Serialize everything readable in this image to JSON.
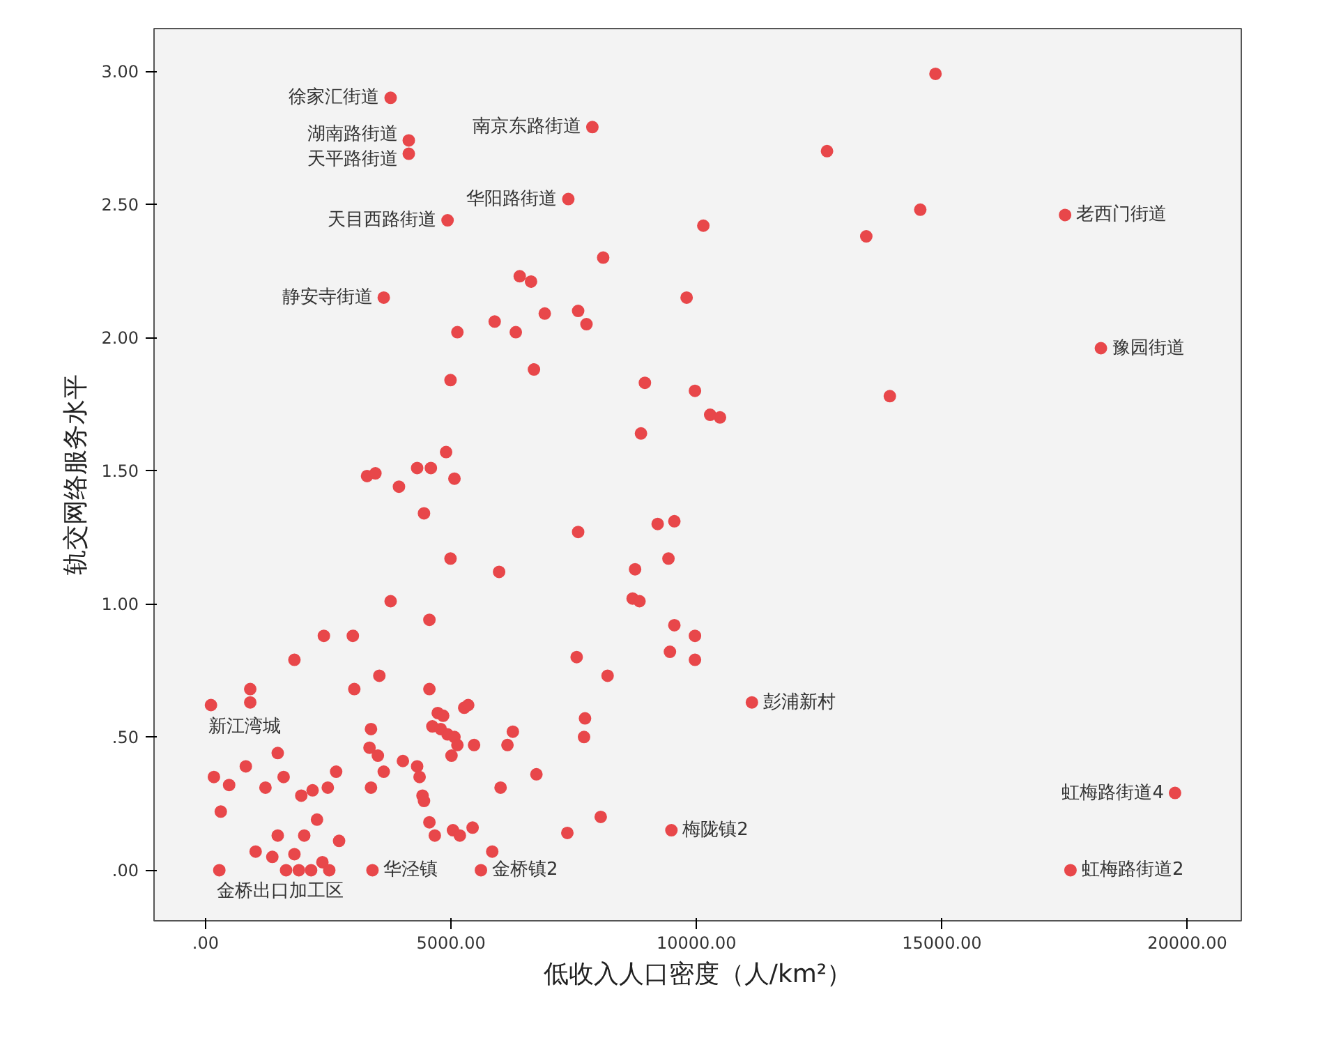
{
  "chart_data": {
    "type": "scatter",
    "xlabel": "低收入人口密度（人/km²）",
    "ylabel": "轨交网络服务水平",
    "xlim": [
      -1050,
      21100
    ],
    "ylim": [
      -0.19,
      3.16
    ],
    "xticks": [
      {
        "value": 0,
        "label": ".00"
      },
      {
        "value": 5000,
        "label": "5000.00"
      },
      {
        "value": 10000,
        "label": "10000.00"
      },
      {
        "value": 15000,
        "label": "15000.00"
      },
      {
        "value": 20000,
        "label": "20000.00"
      }
    ],
    "yticks": [
      {
        "value": 0,
        "label": ".00"
      },
      {
        "value": 0.5,
        "label": ".50"
      },
      {
        "value": 1,
        "label": "1.00"
      },
      {
        "value": 1.5,
        "label": "1.50"
      },
      {
        "value": 2,
        "label": "2.00"
      },
      {
        "value": 2.5,
        "label": "2.50"
      },
      {
        "value": 3,
        "label": "3.00"
      }
    ],
    "grid": false,
    "marker": "circle",
    "series": [
      {
        "color": "#e8474a",
        "x": [
          3770,
          4140,
          4140,
          7880,
          7390,
          4930,
          3630,
          17510,
          18240,
          110,
          11130,
          9490,
          19750,
          17620,
          280,
          3400,
          5610,
          14870,
          12660,
          14560,
          13460,
          10140,
          8100,
          6400,
          6630,
          9800,
          6910,
          7590,
          7760,
          5890,
          6320,
          5130,
          6690,
          4990,
          8950,
          9970,
          10280,
          10480,
          8870,
          13940,
          4900,
          4310,
          4590,
          3290,
          3460,
          5070,
          3940,
          4450,
          7590,
          9210,
          9550,
          4990,
          5980,
          9430,
          8750,
          8700,
          8840,
          9550,
          9970,
          9460,
          9970,
          7560,
          8190,
          7730,
          7710,
          3770,
          4560,
          2410,
          3000,
          1810,
          3540,
          3030,
          910,
          910,
          4560,
          1470,
          170,
          480,
          310,
          820,
          1220,
          1590,
          1950,
          2180,
          2490,
          2660,
          2270,
          1470,
          2010,
          2720,
          1020,
          1360,
          1810,
          1640,
          1900,
          2150,
          2380,
          2520,
          3370,
          3340,
          3510,
          3630,
          3370,
          4020,
          4310,
          4360,
          4420,
          4450,
          4560,
          4670,
          4730,
          4840,
          4620,
          4790,
          4930,
          5070,
          5130,
          5010,
          5270,
          5350,
          5470,
          5040,
          5180,
          5440,
          5840,
          6010,
          6150,
          6260,
          6740,
          8050,
          7370
        ],
        "values": [
          2.9,
          2.74,
          2.69,
          2.79,
          2.52,
          2.44,
          2.15,
          2.46,
          1.96,
          0.62,
          0.63,
          0.15,
          0.29,
          0.0,
          0.0,
          0.0,
          0.0,
          2.99,
          2.7,
          2.48,
          2.38,
          2.42,
          2.3,
          2.23,
          2.21,
          2.15,
          2.09,
          2.1,
          2.05,
          2.06,
          2.02,
          2.02,
          1.88,
          1.84,
          1.83,
          1.8,
          1.71,
          1.7,
          1.64,
          1.78,
          1.57,
          1.51,
          1.51,
          1.48,
          1.49,
          1.47,
          1.44,
          1.34,
          1.27,
          1.3,
          1.31,
          1.17,
          1.12,
          1.17,
          1.13,
          1.02,
          1.01,
          0.92,
          0.88,
          0.82,
          0.79,
          0.8,
          0.73,
          0.57,
          0.5,
          1.01,
          0.94,
          0.88,
          0.88,
          0.79,
          0.73,
          0.68,
          0.68,
          0.63,
          0.68,
          0.44,
          0.35,
          0.32,
          0.22,
          0.39,
          0.31,
          0.35,
          0.28,
          0.3,
          0.31,
          0.37,
          0.19,
          0.13,
          0.13,
          0.11,
          0.07,
          0.05,
          0.06,
          0.0,
          0.0,
          0.0,
          0.03,
          0.0,
          0.53,
          0.46,
          0.43,
          0.37,
          0.31,
          0.41,
          0.39,
          0.35,
          0.28,
          0.26,
          0.18,
          0.13,
          0.59,
          0.58,
          0.54,
          0.53,
          0.51,
          0.5,
          0.47,
          0.43,
          0.61,
          0.62,
          0.47,
          0.15,
          0.13,
          0.16,
          0.07,
          0.31,
          0.47,
          0.52,
          0.36,
          0.2,
          0.14
        ]
      }
    ],
    "annotations": [
      {
        "text": "徐家汇街道",
        "x": 3770,
        "y": 2.9
      },
      {
        "text": "湖南路街道",
        "x": 4140,
        "y": 2.74
      },
      {
        "text": "天平路街道",
        "x": 4140,
        "y": 2.69
      },
      {
        "text": "南京东路街道",
        "x": 7880,
        "y": 2.79
      },
      {
        "text": "华阳路街道",
        "x": 7390,
        "y": 2.52
      },
      {
        "text": "天目西路街道",
        "x": 4930,
        "y": 2.44
      },
      {
        "text": "静安寺街道",
        "x": 3630,
        "y": 2.15
      },
      {
        "text": "老西门街道",
        "x": 17510,
        "y": 2.46
      },
      {
        "text": "豫园街道",
        "x": 18240,
        "y": 1.96
      },
      {
        "text": "新江湾城",
        "x": 110,
        "y": 0.62
      },
      {
        "text": "彭浦新村",
        "x": 11130,
        "y": 0.63
      },
      {
        "text": "梅陇镇2",
        "x": 9490,
        "y": 0.15
      },
      {
        "text": "虹梅路街道4",
        "x": 19750,
        "y": 0.29
      },
      {
        "text": "虹梅路街道2",
        "x": 17620,
        "y": 0.0
      },
      {
        "text": "金桥出口加工区",
        "x": 280,
        "y": 0.0
      },
      {
        "text": "华泾镇",
        "x": 3400,
        "y": 0.0
      },
      {
        "text": "金桥镇2",
        "x": 5610,
        "y": 0.0
      }
    ]
  }
}
